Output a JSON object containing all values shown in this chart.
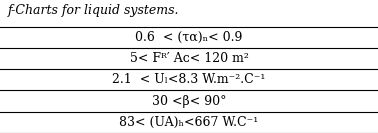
{
  "title_line": "f-Charts for liquid systems.",
  "rows": [
    "0.6  < (τα)ₙ< 0.9",
    "5< Fᴿ′ Aᴄ< 120 m²",
    "2.1  < Uₗ<8.3 W.m⁻².C⁻¹",
    "30 <β< 90°",
    "83< (UA)ₕ<667 W.C⁻¹"
  ],
  "bg_color": "#ffffff",
  "text_color": "#000000",
  "title_fontsize": 9,
  "row_fontsize": 9
}
